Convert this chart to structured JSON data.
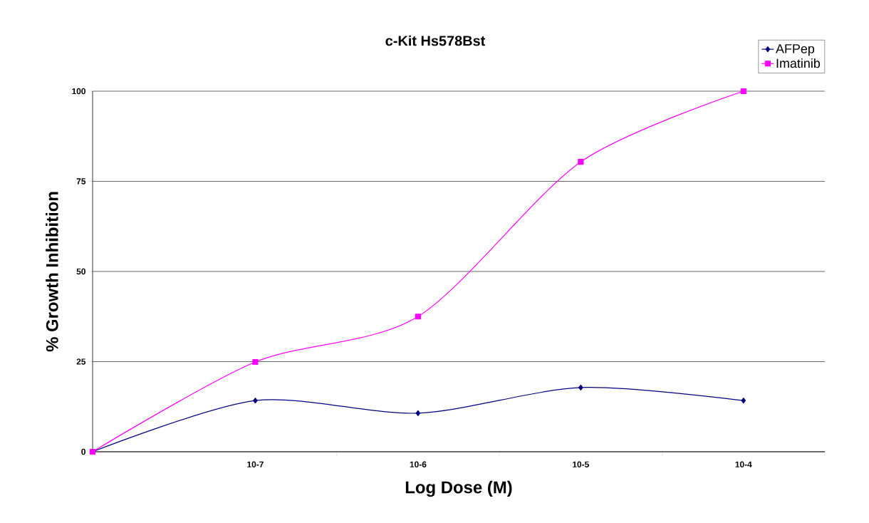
{
  "chart_data": {
    "type": "line",
    "title": "c-Kit Hs578Bst",
    "xlabel": "Log Dose (M)",
    "ylabel": "% Growth Inhibition",
    "categories": [
      null,
      "10-7",
      "10-6",
      "10-5",
      "10-4"
    ],
    "series": [
      {
        "name": "AFPep",
        "color": "#000080",
        "marker": "diamond",
        "values": [
          0,
          14.2,
          10.7,
          17.8,
          14.2
        ]
      },
      {
        "name": "Imatinib",
        "color": "#ff00ff",
        "marker": "square",
        "values": [
          0,
          24.9,
          37.5,
          80.4,
          100
        ]
      }
    ],
    "ylim": [
      0,
      100
    ],
    "yticks": [
      0,
      25,
      50,
      75,
      100
    ],
    "grid": "y",
    "legend": "top right",
    "line_style": "solid"
  }
}
